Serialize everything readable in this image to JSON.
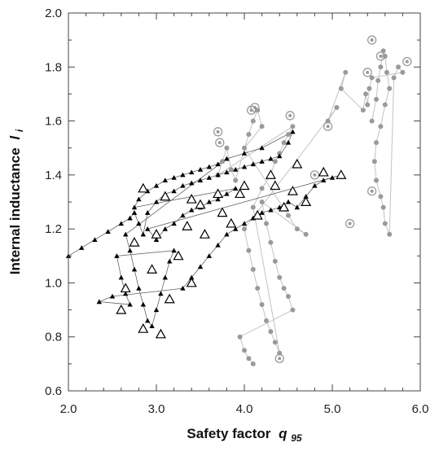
{
  "chart_data": {
    "type": "scatter",
    "title": "",
    "xlabel": "Safety factor",
    "xlabel_symbol": "q",
    "xlabel_sub": "95",
    "ylabel": "Internal inductance",
    "ylabel_symbol": "l",
    "ylabel_sub": "i",
    "xlim": [
      2.0,
      6.0
    ],
    "ylim": [
      0.6,
      2.0
    ],
    "x_ticks": [
      "2.0",
      "3.0",
      "4.0",
      "5.0",
      "6.0"
    ],
    "y_ticks": [
      "0.6",
      "0.8",
      "1.0",
      "1.2",
      "1.4",
      "1.6",
      "1.8",
      "2.0"
    ],
    "x_tick_values": [
      2.0,
      3.0,
      4.0,
      5.0,
      6.0
    ],
    "y_tick_values": [
      0.6,
      0.8,
      1.0,
      1.2,
      1.4,
      1.6,
      1.8,
      2.0
    ],
    "grid": false,
    "legend": "none",
    "series": [
      {
        "color": "#000000",
        "marker": "filled-triangle",
        "points": [
          [
            2.0,
            1.1
          ],
          [
            2.15,
            1.13
          ],
          [
            2.3,
            1.16
          ],
          [
            2.45,
            1.19
          ],
          [
            2.6,
            1.22
          ],
          [
            2.7,
            1.24
          ],
          [
            2.75,
            1.26
          ],
          [
            2.8,
            1.22
          ],
          [
            2.85,
            1.18
          ],
          [
            2.9,
            1.26
          ],
          [
            3.0,
            1.3
          ],
          [
            3.1,
            1.33
          ],
          [
            3.2,
            1.34
          ],
          [
            3.3,
            1.36
          ],
          [
            3.4,
            1.37
          ],
          [
            3.5,
            1.38
          ],
          [
            3.6,
            1.39
          ],
          [
            3.7,
            1.4
          ],
          [
            3.8,
            1.41
          ],
          [
            3.9,
            1.42
          ],
          [
            4.0,
            1.43
          ],
          [
            4.1,
            1.44
          ],
          [
            4.2,
            1.45
          ],
          [
            4.3,
            1.46
          ],
          [
            4.4,
            1.47
          ],
          [
            4.5,
            1.52
          ],
          [
            4.55,
            1.56
          ],
          [
            4.2,
            1.5
          ],
          [
            4.0,
            1.48
          ],
          [
            3.8,
            1.46
          ],
          [
            2.65,
            1.18
          ],
          [
            2.7,
            1.12
          ],
          [
            2.75,
            1.05
          ],
          [
            2.8,
            0.98
          ],
          [
            2.85,
            0.92
          ],
          [
            2.9,
            0.86
          ],
          [
            2.95,
            0.84
          ],
          [
            3.0,
            0.9
          ],
          [
            3.05,
            0.96
          ],
          [
            3.1,
            1.02
          ],
          [
            3.15,
            1.08
          ],
          [
            3.2,
            1.12
          ],
          [
            2.55,
            1.1
          ],
          [
            2.6,
            1.02
          ],
          [
            2.65,
            0.96
          ],
          [
            2.7,
            0.92
          ],
          [
            2.35,
            0.93
          ],
          [
            2.5,
            0.95
          ],
          [
            3.3,
            0.98
          ],
          [
            3.4,
            1.02
          ],
          [
            3.5,
            1.06
          ],
          [
            3.6,
            1.1
          ],
          [
            3.7,
            1.14
          ],
          [
            3.8,
            1.18
          ],
          [
            3.9,
            1.2
          ],
          [
            4.0,
            1.22
          ],
          [
            4.1,
            1.24
          ],
          [
            4.2,
            1.26
          ],
          [
            4.3,
            1.27
          ],
          [
            4.4,
            1.28
          ],
          [
            4.5,
            1.3
          ],
          [
            4.6,
            1.28
          ],
          [
            4.7,
            1.32
          ],
          [
            4.8,
            1.36
          ],
          [
            4.9,
            1.38
          ],
          [
            5.0,
            1.39
          ],
          [
            5.1,
            1.4
          ],
          [
            2.9,
            1.2
          ],
          [
            3.0,
            1.16
          ],
          [
            3.1,
            1.2
          ],
          [
            3.2,
            1.22
          ],
          [
            3.3,
            1.25
          ],
          [
            3.4,
            1.27
          ],
          [
            3.5,
            1.28
          ],
          [
            3.6,
            1.3
          ],
          [
            3.7,
            1.31
          ],
          [
            3.8,
            1.33
          ],
          [
            3.9,
            1.35
          ],
          [
            2.75,
            1.28
          ],
          [
            2.8,
            1.31
          ],
          [
            2.9,
            1.34
          ],
          [
            3.0,
            1.36
          ],
          [
            3.1,
            1.38
          ],
          [
            3.2,
            1.39
          ],
          [
            3.3,
            1.4
          ],
          [
            3.4,
            1.41
          ],
          [
            3.5,
            1.42
          ],
          [
            3.6,
            1.43
          ],
          [
            3.7,
            1.44
          ],
          [
            3.8,
            1.46
          ]
        ]
      },
      {
        "color": "#000000",
        "marker": "open-triangle",
        "points": [
          [
            2.85,
            1.35
          ],
          [
            3.1,
            1.32
          ],
          [
            3.4,
            1.31
          ],
          [
            3.7,
            1.33
          ],
          [
            4.0,
            1.36
          ],
          [
            4.3,
            1.4
          ],
          [
            4.6,
            1.44
          ],
          [
            4.9,
            1.41
          ],
          [
            5.1,
            1.4
          ],
          [
            2.85,
            0.83
          ],
          [
            3.05,
            0.81
          ],
          [
            2.6,
            0.9
          ],
          [
            2.95,
            1.05
          ],
          [
            3.25,
            1.1
          ],
          [
            3.55,
            1.18
          ],
          [
            3.85,
            1.22
          ],
          [
            4.15,
            1.25
          ],
          [
            4.45,
            1.28
          ],
          [
            4.7,
            1.3
          ],
          [
            3.5,
            1.29
          ],
          [
            3.95,
            1.33
          ],
          [
            4.35,
            1.36
          ],
          [
            2.75,
            1.15
          ],
          [
            3.15,
            0.94
          ],
          [
            3.4,
            1.0
          ],
          [
            2.65,
            0.98
          ],
          [
            3.0,
            1.18
          ],
          [
            4.55,
            1.34
          ],
          [
            3.75,
            1.26
          ],
          [
            3.35,
            1.21
          ]
        ]
      },
      {
        "color": "#9a9a9a",
        "marker": "filled-circle",
        "points": [
          [
            5.45,
            1.6
          ],
          [
            5.5,
            1.68
          ],
          [
            5.52,
            1.75
          ],
          [
            5.55,
            1.8
          ],
          [
            5.58,
            1.86
          ],
          [
            5.6,
            1.84
          ],
          [
            5.62,
            1.78
          ],
          [
            5.65,
            1.72
          ],
          [
            5.6,
            1.66
          ],
          [
            5.55,
            1.58
          ],
          [
            5.5,
            1.52
          ],
          [
            5.48,
            1.45
          ],
          [
            5.5,
            1.38
          ],
          [
            5.55,
            1.32
          ],
          [
            5.58,
            1.28
          ],
          [
            5.6,
            1.22
          ],
          [
            5.65,
            1.18
          ],
          [
            5.7,
            1.76
          ],
          [
            5.75,
            1.8
          ],
          [
            5.8,
            1.78
          ],
          [
            5.45,
            1.76
          ],
          [
            5.42,
            1.72
          ],
          [
            5.4,
            1.66
          ],
          [
            5.38,
            1.7
          ],
          [
            5.35,
            1.64
          ],
          [
            5.1,
            1.72
          ],
          [
            5.15,
            1.78
          ],
          [
            4.95,
            1.6
          ],
          [
            5.05,
            1.65
          ],
          [
            4.0,
            1.2
          ],
          [
            4.05,
            1.12
          ],
          [
            4.1,
            1.05
          ],
          [
            4.15,
            0.98
          ],
          [
            4.2,
            0.92
          ],
          [
            4.25,
            0.86
          ],
          [
            4.3,
            0.82
          ],
          [
            4.35,
            0.78
          ],
          [
            4.4,
            0.74
          ],
          [
            4.1,
            1.28
          ],
          [
            4.2,
            1.35
          ],
          [
            4.3,
            1.4
          ],
          [
            4.35,
            1.45
          ],
          [
            4.4,
            1.48
          ],
          [
            4.45,
            1.52
          ],
          [
            4.5,
            1.55
          ],
          [
            4.55,
            1.58
          ],
          [
            3.7,
            1.4
          ],
          [
            3.75,
            1.45
          ],
          [
            3.8,
            1.5
          ],
          [
            3.85,
            1.42
          ],
          [
            3.9,
            1.38
          ],
          [
            4.05,
            1.55
          ],
          [
            4.1,
            1.6
          ],
          [
            4.15,
            1.64
          ],
          [
            4.2,
            1.58
          ],
          [
            4.0,
            1.5
          ],
          [
            4.5,
            1.25
          ],
          [
            4.6,
            1.2
          ],
          [
            4.7,
            1.18
          ],
          [
            4.2,
            1.3
          ],
          [
            4.25,
            1.22
          ],
          [
            4.3,
            1.15
          ],
          [
            4.35,
            1.08
          ],
          [
            4.4,
            1.02
          ],
          [
            4.45,
            0.98
          ],
          [
            4.5,
            0.95
          ],
          [
            4.55,
            0.9
          ],
          [
            3.95,
            0.8
          ],
          [
            4.0,
            0.75
          ],
          [
            4.05,
            0.72
          ],
          [
            4.1,
            0.7
          ]
        ]
      },
      {
        "color": "#9a9a9a",
        "marker": "open-circle",
        "points": [
          [
            5.45,
            1.9
          ],
          [
            5.55,
            1.84
          ],
          [
            5.85,
            1.82
          ],
          [
            5.4,
            1.78
          ],
          [
            4.52,
            1.62
          ],
          [
            4.12,
            1.65
          ],
          [
            4.08,
            1.64
          ],
          [
            3.7,
            1.56
          ],
          [
            3.72,
            1.52
          ],
          [
            5.45,
            1.34
          ],
          [
            4.4,
            0.72
          ],
          [
            4.8,
            1.4
          ],
          [
            4.95,
            1.58
          ],
          [
            5.2,
            1.22
          ]
        ]
      }
    ]
  }
}
